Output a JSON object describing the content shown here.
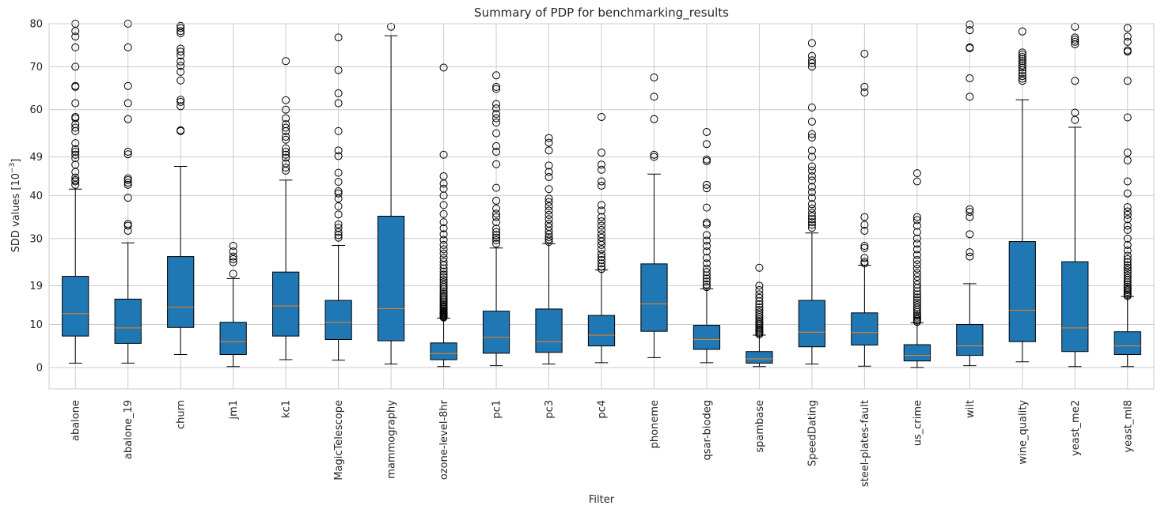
{
  "chart_data": {
    "type": "box",
    "title": "Summary of PDP for benchmarking_results",
    "xlabel": "Filter",
    "ylabel_base": "SDD values [10",
    "ylabel_exp": "−3",
    "ylabel_end": "]",
    "ylim": [
      -5,
      80
    ],
    "yticks": [
      0,
      10,
      19,
      30,
      40,
      49,
      60,
      70,
      80
    ],
    "grid": true,
    "colors": {
      "box_fill": "#1f77b4",
      "median": "#ff7f0e",
      "grid": "#cccccc",
      "whisker": "#000000"
    },
    "categories": [
      "abalone",
      "abalone_19",
      "churn",
      "jm1",
      "kc1",
      "MagicTelescope",
      "mammography",
      "ozone-level-8hr",
      "pc1",
      "pc3",
      "pc4",
      "phoneme",
      "qsar-biodeg",
      "spambase",
      "SpeedDating",
      "steel-plates-fault",
      "us_crime",
      "wilt",
      "wine_quality",
      "yeast_me2",
      "yeast_ml8"
    ],
    "boxes": [
      {
        "label": "abalone",
        "whislo": 1.0,
        "q1": 7.3,
        "med": 12.5,
        "q3": 21.2,
        "whishi": 41.5,
        "fliers": [
          42.5,
          43.3,
          43.6,
          44.2,
          45.5,
          47.2,
          48.7,
          49.5,
          50.2,
          50.8,
          52.2,
          55.0,
          55.8,
          56.6,
          58.0,
          58.3,
          61.5,
          65.3,
          65.5,
          70.0,
          74.5,
          77.0,
          78.3,
          80.0
        ]
      },
      {
        "label": "abalone_19",
        "whislo": 1.0,
        "q1": 5.6,
        "med": 9.2,
        "q3": 15.9,
        "whishi": 29.0,
        "fliers": [
          31.8,
          33.0,
          33.4,
          39.5,
          42.5,
          43.0,
          43.6,
          44.0,
          49.6,
          50.2,
          57.8,
          61.5,
          65.5,
          74.5,
          80.0
        ]
      },
      {
        "label": "churn",
        "whislo": 3.0,
        "q1": 9.3,
        "med": 14.0,
        "q3": 25.8,
        "whishi": 46.8,
        "fliers": [
          55.0,
          55.2,
          60.8,
          61.8,
          62.3,
          66.8,
          68.8,
          70.2,
          71.2,
          72.6,
          73.5,
          74.2,
          77.8,
          78.3,
          79.0,
          79.5
        ]
      },
      {
        "label": "jm1",
        "whislo": 0.2,
        "q1": 3.0,
        "med": 6.0,
        "q3": 10.5,
        "whishi": 20.7,
        "fliers": [
          21.8,
          24.5,
          25.2,
          25.8,
          27.0,
          28.3
        ]
      },
      {
        "label": "kc1",
        "whislo": 1.8,
        "q1": 7.3,
        "med": 14.3,
        "q3": 22.2,
        "whishi": 43.6,
        "fliers": [
          45.8,
          46.5,
          47.5,
          48.8,
          49.5,
          50.2,
          51.0,
          53.0,
          53.7,
          55.0,
          55.8,
          56.6,
          58.0,
          60.0,
          62.2,
          71.3
        ]
      },
      {
        "label": "MagicTelescope",
        "whislo": 1.7,
        "q1": 6.5,
        "med": 10.5,
        "q3": 15.6,
        "whishi": 28.4,
        "fliers": [
          30.2,
          30.8,
          31.5,
          32.5,
          33.3,
          35.6,
          37.5,
          39.3,
          40.5,
          41.0,
          43.2,
          45.3,
          49.2,
          50.5,
          55.0,
          61.5,
          63.8,
          69.2,
          76.8
        ]
      },
      {
        "label": "mammography",
        "whislo": 0.8,
        "q1": 6.2,
        "med": 13.7,
        "q3": 35.2,
        "whishi": 77.2,
        "fliers": [
          79.3
        ]
      },
      {
        "label": "ozone-level-8hr",
        "whislo": 0.2,
        "q1": 1.8,
        "med": 3.2,
        "q3": 5.7,
        "whishi": 11.5,
        "fliers": [
          11.6,
          11.8,
          12.0,
          12.2,
          12.4,
          12.6,
          12.8,
          13.0,
          13.3,
          13.6,
          13.9,
          14.2,
          14.5,
          14.8,
          15.2,
          15.6,
          16.0,
          16.4,
          16.8,
          17.2,
          17.7,
          18.2,
          18.7,
          19.2,
          19.8,
          20.4,
          21.0,
          21.6,
          22.3,
          23.0,
          23.8,
          24.6,
          25.5,
          26.5,
          27.5,
          28.5,
          29.7,
          31.0,
          32.4,
          33.8,
          35.7,
          37.8,
          40.0,
          41.6,
          42.8,
          44.5,
          49.5,
          69.8
        ]
      },
      {
        "label": "pc1",
        "whislo": 0.4,
        "q1": 3.3,
        "med": 7.0,
        "q3": 13.1,
        "whishi": 27.8,
        "fliers": [
          28.8,
          29.6,
          30.2,
          30.8,
          31.5,
          32.3,
          33.8,
          35.0,
          35.8,
          37.0,
          38.8,
          41.8,
          47.3,
          50.2,
          51.5,
          54.5,
          57.0,
          58.0,
          59.0,
          60.3,
          61.3,
          64.8,
          65.3,
          68.0
        ]
      },
      {
        "label": "pc3",
        "whislo": 0.8,
        "q1": 3.5,
        "med": 6.0,
        "q3": 13.6,
        "whishi": 28.8,
        "fliers": [
          29.2,
          29.8,
          30.3,
          31.0,
          31.8,
          32.7,
          33.5,
          34.5,
          35.5,
          36.5,
          37.5,
          38.5,
          39.3,
          41.5,
          44.3,
          45.5,
          47.0,
          50.5,
          52.3,
          53.4
        ]
      },
      {
        "label": "pc4",
        "whislo": 1.1,
        "q1": 5.0,
        "med": 7.5,
        "q3": 12.1,
        "whishi": 22.7,
        "fliers": [
          22.9,
          23.5,
          24.2,
          25.0,
          25.7,
          26.4,
          27.5,
          28.5,
          29.3,
          30.2,
          31.0,
          32.0,
          33.0,
          34.0,
          35.0,
          36.5,
          37.8,
          42.3,
          43.3,
          46.0,
          47.2,
          50.0,
          58.3
        ]
      },
      {
        "label": "phoneme",
        "whislo": 2.3,
        "q1": 8.4,
        "med": 14.8,
        "q3": 24.1,
        "whishi": 45.0,
        "fliers": [
          49.0,
          49.5,
          57.8,
          63.0,
          67.5
        ]
      },
      {
        "label": "qsar-biodeg",
        "whislo": 1.1,
        "q1": 4.2,
        "med": 6.5,
        "q3": 9.8,
        "whishi": 18.3,
        "fliers": [
          18.7,
          19.3,
          20.0,
          20.7,
          21.4,
          22.2,
          23.0,
          24.2,
          25.5,
          27.0,
          28.3,
          29.5,
          30.8,
          33.3,
          33.7,
          37.2,
          41.7,
          42.5,
          48.0,
          48.4,
          52.0,
          54.8
        ]
      },
      {
        "label": "spambase",
        "whislo": 0.2,
        "q1": 1.0,
        "med": 2.0,
        "q3": 3.7,
        "whishi": 7.5,
        "fliers": [
          7.7,
          8.0,
          8.3,
          8.6,
          8.9,
          9.2,
          9.6,
          10.0,
          10.4,
          10.8,
          11.2,
          11.7,
          12.2,
          12.8,
          13.4,
          14.0,
          14.7,
          15.4,
          16.2,
          17.0,
          18.0,
          19.0,
          23.2
        ]
      },
      {
        "label": "SpeedDating",
        "whislo": 0.8,
        "q1": 4.8,
        "med": 8.2,
        "q3": 15.6,
        "whishi": 31.3,
        "fliers": [
          32.5,
          33.2,
          33.8,
          34.5,
          35.2,
          36.0,
          37.0,
          38.0,
          39.5,
          40.8,
          42.0,
          43.5,
          44.5,
          45.8,
          46.8,
          49.0,
          50.5,
          53.5,
          54.3,
          57.2,
          60.5,
          70.0,
          70.8,
          71.5,
          72.5,
          75.5
        ]
      },
      {
        "label": "steel-plates-fault",
        "whislo": 0.3,
        "q1": 5.2,
        "med": 8.1,
        "q3": 12.7,
        "whishi": 23.8,
        "fliers": [
          24.2,
          24.6,
          25.5,
          27.8,
          28.3,
          31.8,
          33.2,
          35.0,
          64.0,
          65.3,
          73.0
        ]
      },
      {
        "label": "us_crime",
        "whislo": 0.0,
        "q1": 1.5,
        "med": 2.8,
        "q3": 5.3,
        "whishi": 10.4,
        "fliers": [
          10.6,
          10.9,
          11.2,
          11.6,
          12.0,
          12.4,
          12.9,
          13.4,
          13.9,
          14.5,
          15.1,
          15.7,
          16.3,
          17.0,
          17.7,
          18.5,
          19.3,
          20.2,
          21.1,
          22.0,
          23.0,
          24.0,
          25.0,
          26.2,
          27.5,
          28.8,
          30.0,
          31.5,
          33.0,
          34.3,
          35.0,
          43.3,
          45.2
        ]
      },
      {
        "label": "wilt",
        "whislo": 0.4,
        "q1": 2.8,
        "med": 5.0,
        "q3": 10.0,
        "whishi": 19.5,
        "fliers": [
          25.8,
          26.8,
          31.0,
          35.0,
          36.2,
          36.8,
          63.0,
          67.3,
          74.3,
          74.5,
          78.5,
          79.8
        ]
      },
      {
        "label": "wine_quality",
        "whislo": 1.3,
        "q1": 6.0,
        "med": 13.3,
        "q3": 29.3,
        "whishi": 62.3,
        "fliers": [
          66.7,
          67.2,
          67.8,
          68.5,
          69.2,
          69.8,
          70.3,
          70.8,
          71.3,
          71.8,
          72.3,
          72.8,
          73.3,
          78.2
        ]
      },
      {
        "label": "yeast_me2",
        "whislo": 0.2,
        "q1": 3.7,
        "med": 9.2,
        "q3": 24.6,
        "whishi": 55.9,
        "fliers": [
          57.6,
          59.3,
          66.7,
          75.2,
          75.8,
          76.3,
          76.8,
          79.3
        ]
      },
      {
        "label": "yeast_ml8",
        "whislo": 0.2,
        "q1": 3.0,
        "med": 5.0,
        "q3": 8.3,
        "whishi": 16.5,
        "fliers": [
          16.6,
          16.9,
          17.2,
          17.6,
          18.0,
          18.4,
          18.8,
          19.3,
          19.8,
          20.3,
          20.8,
          21.4,
          22.0,
          22.6,
          23.2,
          23.8,
          24.5,
          25.2,
          26.0,
          27.2,
          28.5,
          30.0,
          32.0,
          33.0,
          34.5,
          35.5,
          36.3,
          37.3,
          40.5,
          43.3,
          48.2,
          50.0,
          58.2,
          66.7,
          73.5,
          73.8,
          75.8,
          77.0,
          79.0
        ]
      }
    ]
  }
}
